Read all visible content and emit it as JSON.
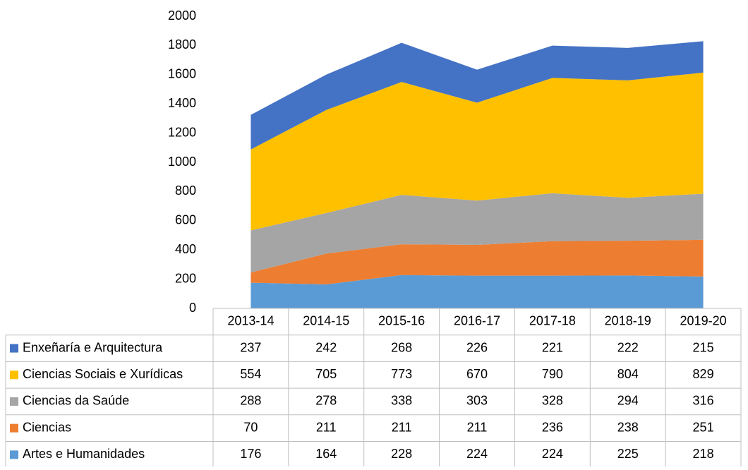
{
  "chart_data": {
    "type": "stacked_area",
    "categories": [
      "2013-14",
      "2014-15",
      "2015-16",
      "2016-17",
      "2017-18",
      "2018-19",
      "2019-20"
    ],
    "series": [
      {
        "name": "Enxeñaría e Arquitectura",
        "color": "#4472c4",
        "values": [
          237,
          242,
          268,
          226,
          221,
          222,
          215
        ]
      },
      {
        "name": "Ciencias Sociais e Xurídicas",
        "color": "#ffc000",
        "values": [
          554,
          705,
          773,
          670,
          790,
          804,
          829
        ]
      },
      {
        "name": "Ciencias da Saúde",
        "color": "#a5a5a5",
        "values": [
          288,
          278,
          338,
          303,
          328,
          294,
          316
        ]
      },
      {
        "name": "Ciencias",
        "color": "#ed7d31",
        "values": [
          70,
          211,
          211,
          211,
          236,
          238,
          251
        ]
      },
      {
        "name": "Artes e Humanidades",
        "color": "#5b9bd5",
        "values": [
          176,
          164,
          228,
          224,
          224,
          225,
          218
        ]
      }
    ],
    "ylim": [
      0,
      2000
    ],
    "yticks": [
      0,
      200,
      400,
      600,
      800,
      1000,
      1200,
      1400,
      1600,
      1800,
      2000
    ],
    "grid": false,
    "data_table": true
  }
}
